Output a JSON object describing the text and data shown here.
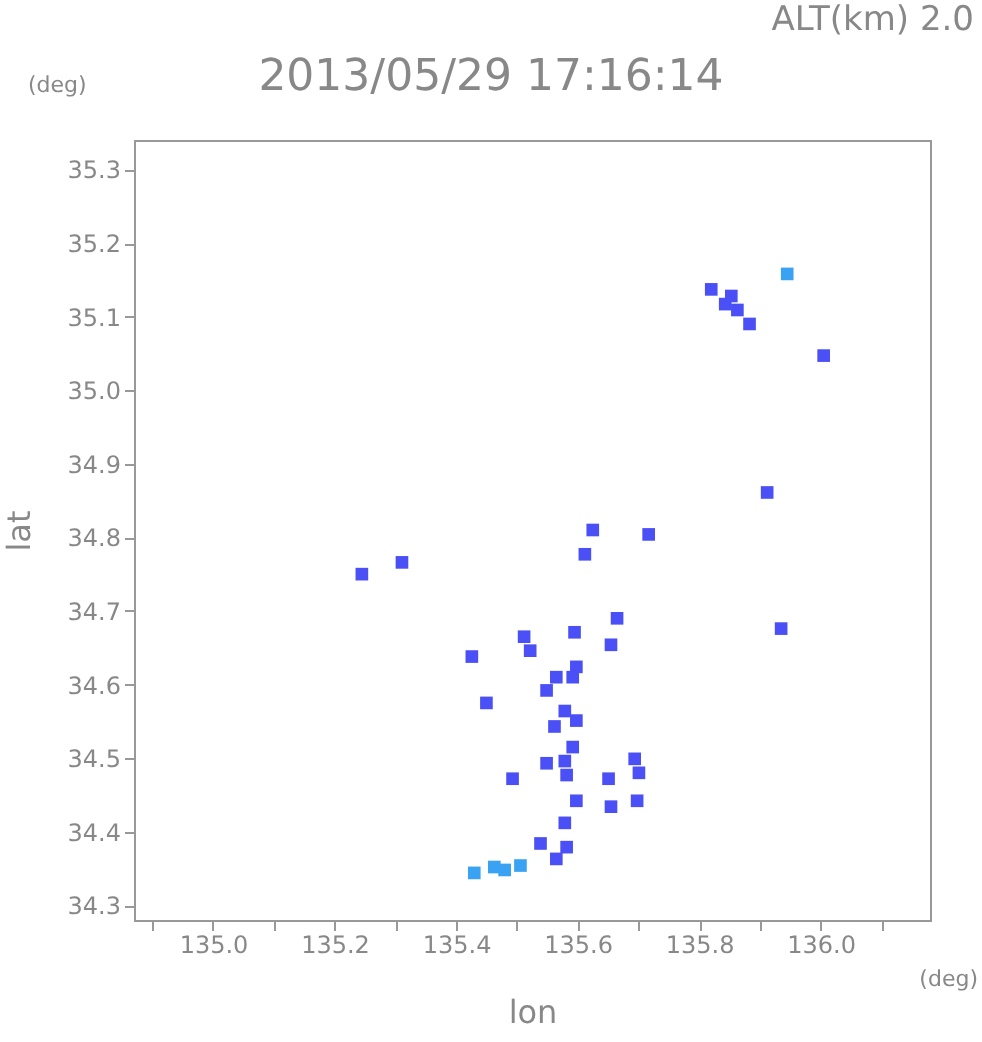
{
  "chart_data": {
    "type": "scatter",
    "title": "2013/05/29 17:16:14",
    "subtitle": "ALT(km) 2.0",
    "xlabel": "lon",
    "ylabel": "lat",
    "annotations": [
      "(deg)",
      "(deg)"
    ],
    "xlim": [
      134.87,
      136.18
    ],
    "ylim": [
      34.28,
      35.34
    ],
    "xticks": [
      {
        "value": 134.9,
        "label": null
      },
      {
        "value": 135,
        "label": "135.0"
      },
      {
        "value": 135.1,
        "label": null
      },
      135.2,
      {
        "value": 135.3,
        "label": null
      },
      135.4,
      {
        "value": 135.5,
        "label": null
      },
      135.6,
      {
        "value": 135.7,
        "label": null
      },
      135.8,
      {
        "value": 135.9,
        "label": null
      },
      {
        "value": 136,
        "label": "136.0"
      },
      {
        "value": 136.1,
        "label": null
      }
    ],
    "yticks": [
      34.3,
      34.4,
      34.5,
      34.6,
      34.7,
      34.8,
      34.9,
      {
        "value": 35,
        "label": "35.0"
      },
      35.1,
      35.2,
      35.3
    ],
    "grid": false,
    "marker": "square",
    "series": [
      {
        "color": "#4a50f5",
        "x": [
          135.82,
          135.843,
          135.853,
          135.863,
          135.883,
          136.005,
          135.912,
          135.935,
          135.717,
          135.625,
          135.612,
          135.245,
          135.311,
          135.426,
          135.512,
          135.522,
          135.595,
          135.665,
          135.655,
          135.598,
          135.565,
          135.592,
          135.549,
          135.45,
          135.579,
          135.598,
          135.562,
          135.592,
          135.579,
          135.549,
          135.582,
          135.493,
          135.651,
          135.694,
          135.701,
          135.698,
          135.655,
          135.598,
          135.579,
          135.539,
          135.582,
          135.565
        ],
        "values": [
          35.137,
          35.117,
          35.128,
          35.109,
          35.09,
          35.047,
          34.861,
          34.676,
          34.804,
          34.81,
          34.777,
          34.75,
          34.766,
          34.638,
          34.665,
          34.646,
          34.671,
          34.69,
          34.654,
          34.624,
          34.61,
          34.61,
          34.592,
          34.575,
          34.564,
          34.551,
          34.543,
          34.515,
          34.496,
          34.493,
          34.477,
          34.472,
          34.472,
          34.499,
          34.48,
          34.442,
          34.434,
          34.442,
          34.412,
          34.384,
          34.379,
          34.363
        ]
      },
      {
        "color": "#3aa2f2",
        "x": [
          135.945,
          135.463,
          135.43,
          135.506,
          135.48
        ],
        "values": [
          35.158,
          34.352,
          34.344,
          34.354,
          34.348
        ]
      }
    ]
  }
}
